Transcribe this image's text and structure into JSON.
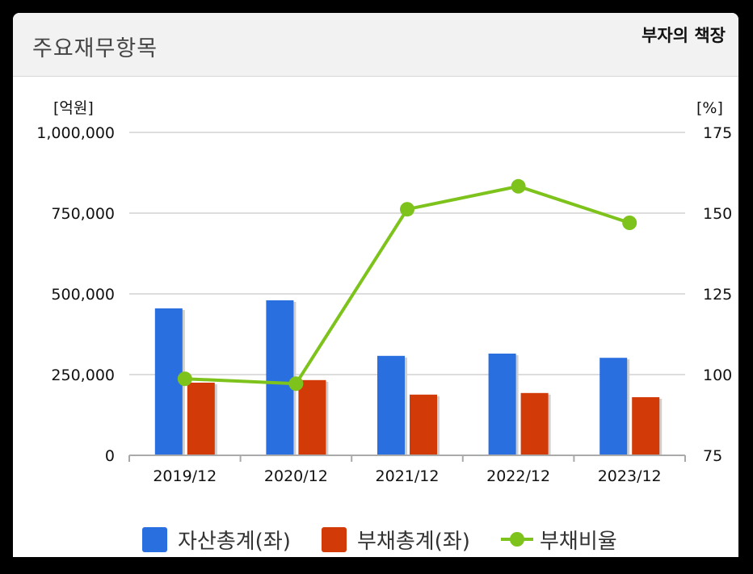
{
  "header": {
    "title": "주요재무항목",
    "caption": "부자의 책장"
  },
  "chart_data": {
    "type": "bar",
    "categories": [
      "2019/12",
      "2020/12",
      "2021/12",
      "2022/12",
      "2023/12"
    ],
    "left_axis": {
      "unit": "[억원]",
      "ylim": [
        0,
        1000000
      ],
      "ticks": [
        "0",
        "250,000",
        "500,000",
        "750,000",
        "1,000,000"
      ]
    },
    "right_axis": {
      "unit": "[%]",
      "ylim": [
        75,
        175
      ],
      "ticks": [
        "75",
        "100",
        "125",
        "150",
        "175"
      ]
    },
    "series": [
      {
        "name": "자산총계(좌)",
        "type": "bar",
        "axis": "left",
        "color": "#2a6fe0",
        "values": [
          455000,
          480000,
          308000,
          315000,
          302000
        ]
      },
      {
        "name": "부채총계(좌)",
        "type": "bar",
        "axis": "left",
        "color": "#d23a08",
        "values": [
          225000,
          233000,
          188000,
          193000,
          180000
        ]
      },
      {
        "name": "부채비율",
        "type": "line",
        "axis": "right",
        "color": "#7dc31c",
        "values": [
          98.7,
          97.2,
          151.2,
          158.3,
          147.0
        ]
      }
    ],
    "grid": true,
    "legend_position": "bottom"
  }
}
